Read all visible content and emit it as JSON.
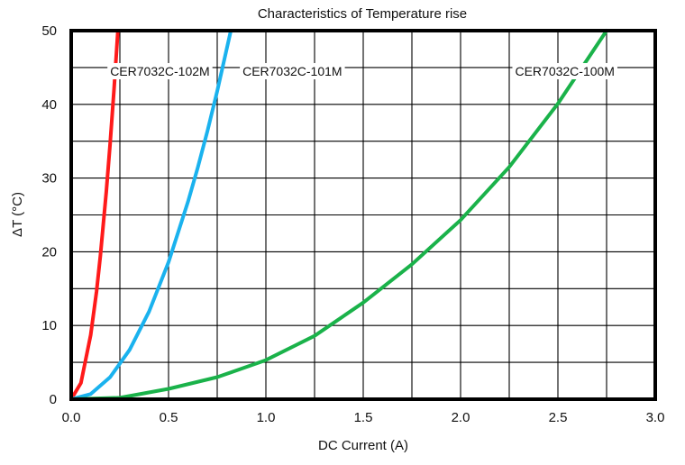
{
  "chart_data": {
    "type": "line",
    "title": "Characteristics of Temperature rise",
    "xlabel": "DC Current (A)",
    "ylabel": "ΔT (°C)",
    "xlim": [
      0,
      3
    ],
    "ylim": [
      0,
      50
    ],
    "xticks": [
      0,
      0.5,
      1,
      1.5,
      2,
      2.5,
      3
    ],
    "xtick_labels": [
      "0.0",
      "0.5",
      "1.0",
      "1.5",
      "2.0",
      "2.5",
      "3.0"
    ],
    "yticks": [
      0,
      10,
      20,
      30,
      40,
      50
    ],
    "ytick_labels": [
      "0",
      "10",
      "20",
      "30",
      "40",
      "50"
    ],
    "grid": true,
    "series": [
      {
        "name": "CER7032C-102M",
        "color": "#ff1a1a",
        "x": [
          0,
          0.05,
          0.1,
          0.13,
          0.15,
          0.18,
          0.2,
          0.22,
          0.24
        ],
        "y": [
          0,
          2.2,
          8.7,
          14.6,
          19.5,
          28.1,
          34.7,
          42.0,
          50.0
        ]
      },
      {
        "name": "CER7032C-101M",
        "color": "#1ab2ee",
        "x": [
          0,
          0.1,
          0.2,
          0.3,
          0.4,
          0.5,
          0.6,
          0.65,
          0.7,
          0.75,
          0.82
        ],
        "y": [
          0,
          0.7,
          3.0,
          6.7,
          11.9,
          18.6,
          26.8,
          31.4,
          36.4,
          41.8,
          50.0
        ]
      },
      {
        "name": "CER7032C-100M",
        "color": "#1ab24a",
        "x": [
          0,
          0.25,
          0.5,
          0.75,
          1.0,
          1.25,
          1.5,
          1.75,
          2.0,
          2.25,
          2.5,
          2.75
        ],
        "y": [
          0,
          0.2,
          1.4,
          3.0,
          5.3,
          8.6,
          13.1,
          18.3,
          24.3,
          31.5,
          40.1,
          50.0
        ]
      }
    ],
    "legend_labels": [
      {
        "series": 0,
        "text": "CER7032C-102M",
        "x": 0.2,
        "y": 44.5
      },
      {
        "series": 1,
        "text": "CER7032C-101M",
        "x": 0.88,
        "y": 44.5
      },
      {
        "series": 2,
        "text": "CER7032C-100M",
        "x": 2.28,
        "y": 44.5
      }
    ]
  }
}
